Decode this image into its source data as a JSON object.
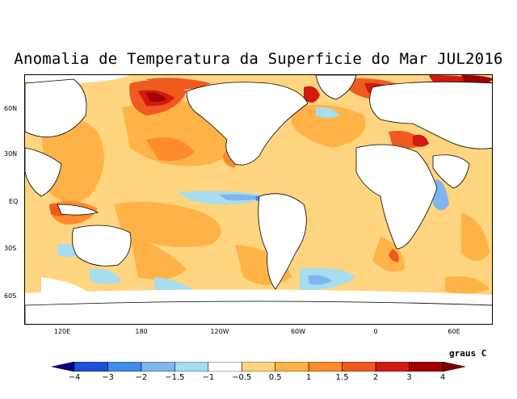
{
  "title": "Anomalia de Temperatura da Superficie do Mar JUL2016",
  "units": "graus C",
  "map": {
    "lat_labels": [
      "60N",
      "30N",
      "EQ",
      "30S",
      "60S"
    ],
    "lon_labels": [
      "120E",
      "180",
      "120W",
      "60W",
      "0",
      "60E"
    ]
  },
  "legend": {
    "thresholds": [
      "-4",
      "-3",
      "-2",
      "-1.5",
      "-1",
      "-0.5",
      "0.5",
      "1",
      "1.5",
      "2",
      "3",
      "4"
    ],
    "colors": [
      "#00008b",
      "#1c4fd8",
      "#3f8ee8",
      "#7fb6ee",
      "#a8dcf0",
      "#ffffff",
      "#ffd580",
      "#ffb347",
      "#ff8c2a",
      "#f05a1e",
      "#d11a10",
      "#a00000",
      "#7a0000"
    ]
  },
  "palette": {
    "land": "#ffffff",
    "warm_light": "#ffd580",
    "warm_mid": "#ffb347",
    "warm_strong": "#ff8c2a",
    "hot": "#f05a1e",
    "very_hot": "#d11a10",
    "extreme": "#a00000",
    "cool_light": "#a8dcf0",
    "cool_mid": "#7fb6ee",
    "cool_strong": "#3f8ee8"
  }
}
